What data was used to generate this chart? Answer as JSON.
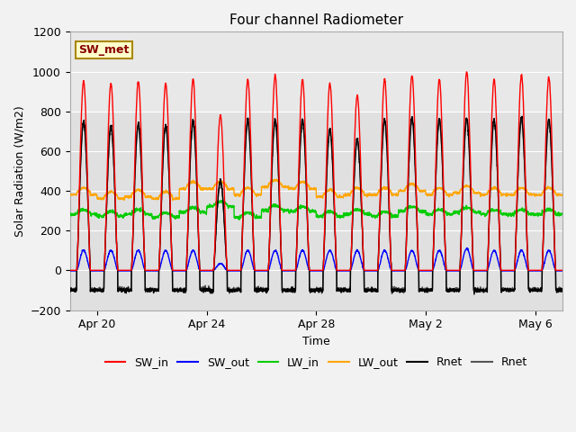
{
  "title": "Four channel Radiometer",
  "xlabel": "Time",
  "ylabel": "Solar Radiation (W/m2)",
  "ylim": [
    -200,
    1200
  ],
  "xtick_labels": [
    "Apr 20",
    "Apr 24",
    "Apr 28",
    "May 2",
    "May 6"
  ],
  "xtick_positions": [
    1,
    5,
    9,
    13,
    17
  ],
  "yticks": [
    -200,
    0,
    200,
    400,
    600,
    800,
    1000,
    1200
  ],
  "figure_bg": "#f2f2f2",
  "plot_bg": "#ffffff",
  "annotation_text": "SW_met",
  "annotation_box_facecolor": "#ffffcc",
  "annotation_box_edgecolor": "#aa8800",
  "annotation_text_color": "#880000",
  "annotation_fontsize": 9,
  "series": {
    "SW_in": {
      "color": "#ff0000",
      "linewidth": 1.0
    },
    "SW_out": {
      "color": "#0000ff",
      "linewidth": 1.0
    },
    "LW_in": {
      "color": "#00cc00",
      "linewidth": 1.0
    },
    "LW_out": {
      "color": "#ffa500",
      "linewidth": 1.0
    },
    "Rnet_black": {
      "color": "#000000",
      "linewidth": 1.0
    },
    "Rnet_dark": {
      "color": "#555555",
      "linewidth": 1.0
    }
  },
  "legend": [
    {
      "label": "SW_in",
      "color": "#ff0000"
    },
    {
      "label": "SW_out",
      "color": "#0000ff"
    },
    {
      "label": "LW_in",
      "color": "#00cc00"
    },
    {
      "label": "LW_out",
      "color": "#ffa500"
    },
    {
      "label": "Rnet",
      "color": "#000000"
    },
    {
      "label": "Rnet",
      "color": "#555555"
    }
  ],
  "num_days": 18,
  "pts_per_day": 144,
  "day_peak_SW_in": [
    950,
    940,
    950,
    940,
    960,
    780,
    960,
    980,
    960,
    940,
    880,
    960,
    980,
    960,
    1000,
    960,
    980,
    970
  ],
  "day_peak_Rnet": [
    750,
    730,
    740,
    730,
    750,
    450,
    760,
    760,
    760,
    710,
    660,
    760,
    770,
    760,
    770,
    760,
    770,
    760
  ],
  "LW_out_day": [
    390,
    370,
    380,
    370,
    420,
    420,
    390,
    430,
    420,
    380,
    390,
    390,
    410,
    390,
    400,
    390,
    390,
    390
  ],
  "LW_in_day": [
    290,
    280,
    290,
    275,
    300,
    330,
    275,
    310,
    305,
    280,
    290,
    280,
    305,
    290,
    300,
    290,
    290,
    290
  ],
  "SW_out_peak": [
    100,
    100,
    100,
    100,
    100,
    35,
    100,
    100,
    100,
    100,
    100,
    100,
    100,
    100,
    110,
    100,
    100,
    100
  ],
  "night_Rnet": -100,
  "title_fontsize": 11,
  "axis_label_fontsize": 9,
  "tick_fontsize": 9,
  "legend_fontsize": 9
}
